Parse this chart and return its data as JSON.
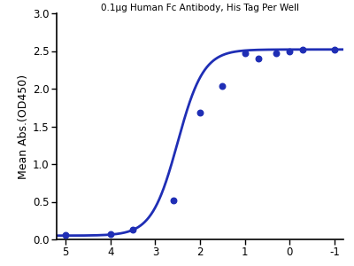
{
  "title": "0.1μg Human Fc Antibody, His Tag Per Well",
  "ylabel": "Mean Abs.(OD450)",
  "curve_color": "#1f2eb5",
  "dot_color": "#1f2eb5",
  "xlim": [
    5.2,
    -1.2
  ],
  "ylim": [
    0.0,
    3.0
  ],
  "xticks": [
    5,
    4,
    3,
    2,
    1,
    0,
    -1
  ],
  "yticks": [
    0.0,
    0.5,
    1.0,
    1.5,
    2.0,
    2.5,
    3.0
  ],
  "data_x": [
    5.0,
    4.0,
    3.5,
    2.6,
    2.0,
    1.5,
    1.0,
    0.7,
    0.3,
    0.0,
    -0.3,
    -1.0
  ],
  "data_y": [
    0.06,
    0.07,
    0.13,
    0.52,
    1.68,
    2.03,
    2.47,
    2.4,
    2.47,
    2.5,
    2.52,
    2.52
  ],
  "figsize": [
    4.0,
    3.0
  ],
  "dpi": 100,
  "title_fontsize": 7.5,
  "label_fontsize": 9,
  "tick_fontsize": 8.5,
  "dot_size": 22,
  "line_width": 2.0
}
